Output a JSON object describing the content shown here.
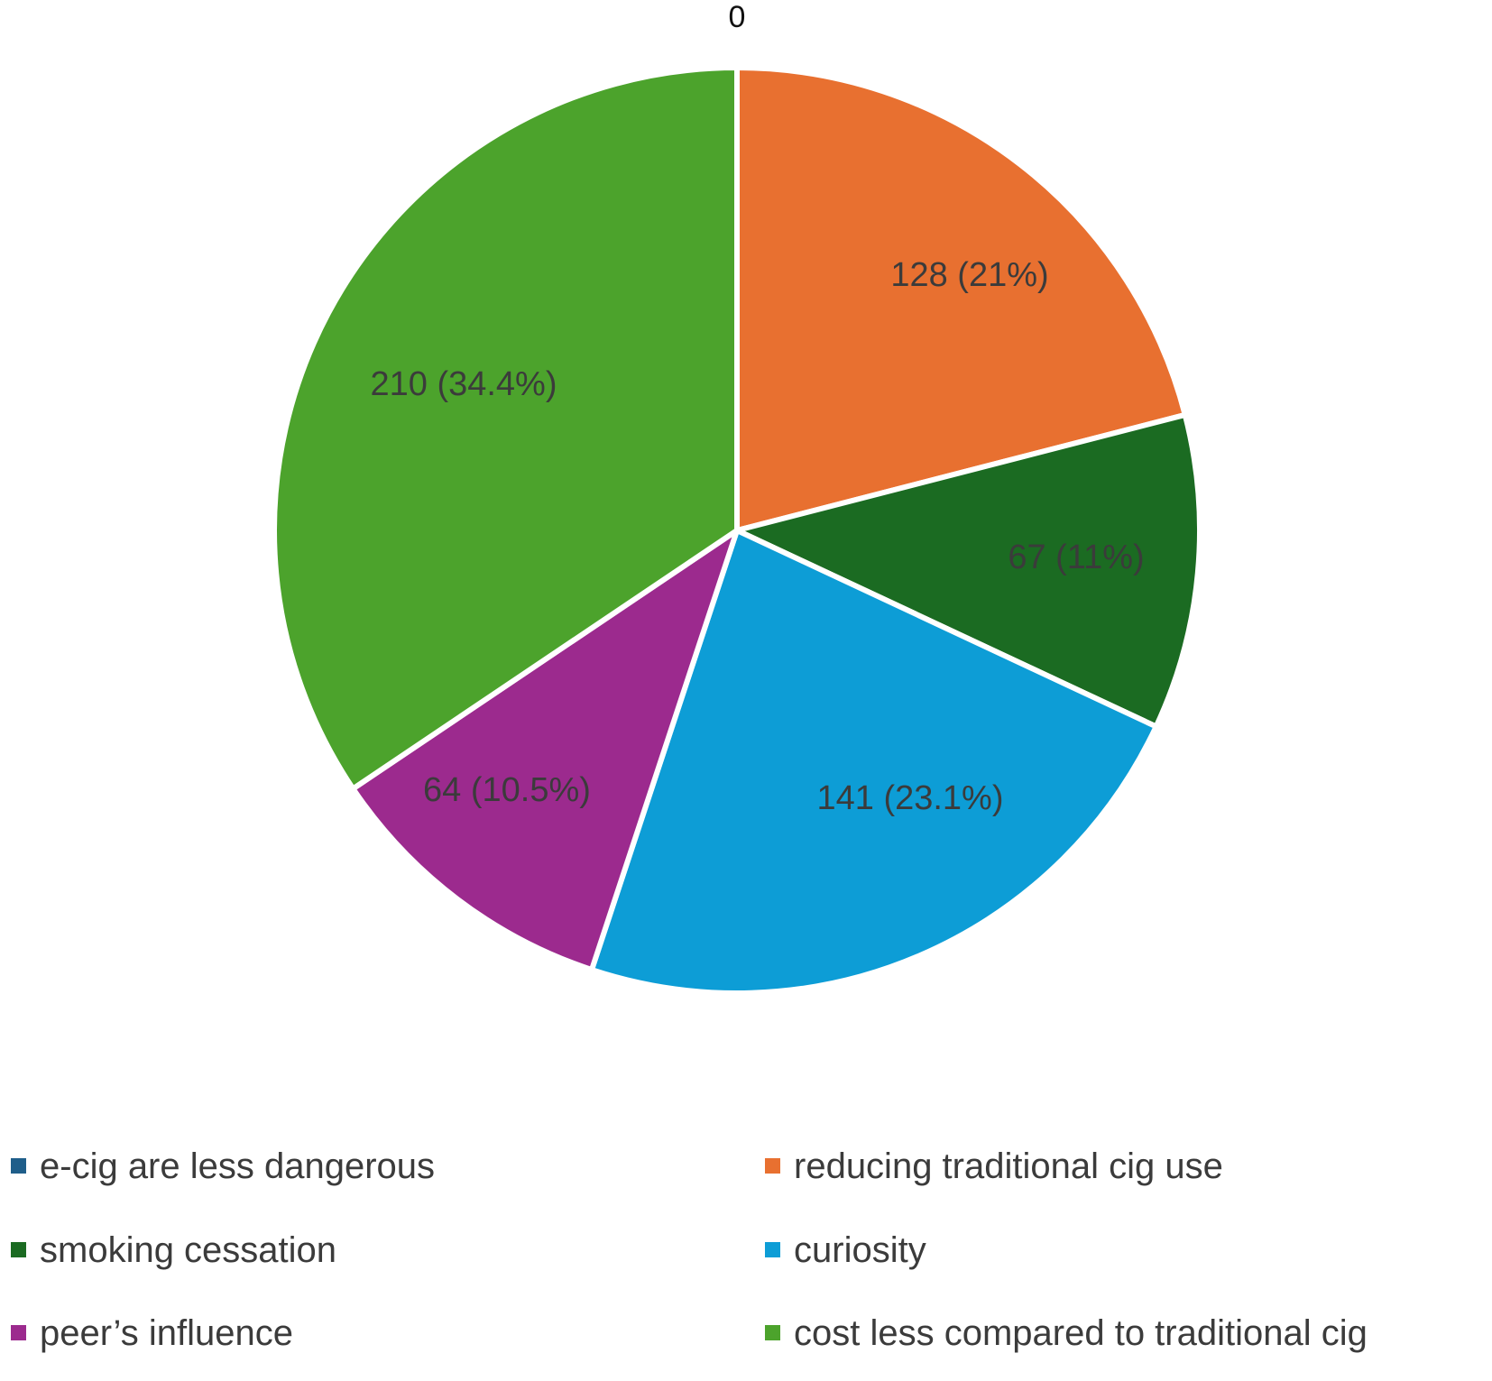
{
  "chart_data": {
    "type": "pie",
    "title": "",
    "categories": [
      "e-cig are less dangerous",
      "reducing traditional cig use",
      "smoking cessation",
      "curiosity",
      "peer’s influence",
      "cost less compared to traditional cig"
    ],
    "values": [
      0,
      128,
      67,
      141,
      64,
      210
    ],
    "data_labels": [
      "0",
      "128 (21%)",
      "67 (11%)",
      "141 (23.1%)",
      "64 (10.5%)",
      "210 (34.4%)"
    ],
    "colors": [
      "#1F5E8A",
      "#E87030",
      "#1B6B22",
      "#0D9DD6",
      "#9C2A8E",
      "#4CA32C"
    ],
    "start_angle": "12 o'clock",
    "direction": "clockwise",
    "legend_position": "bottom",
    "legend_columns": 2
  }
}
